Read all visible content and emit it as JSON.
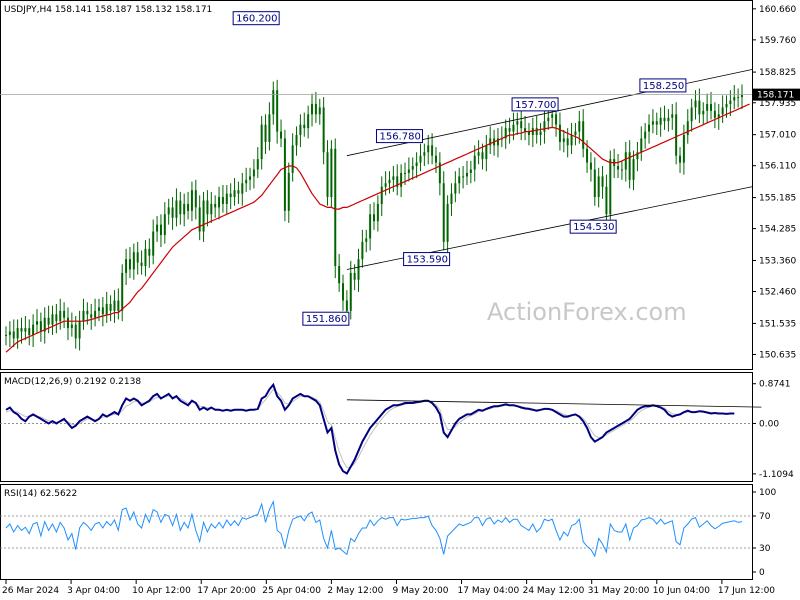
{
  "chart_data": {
    "type": "candlestick",
    "symbol_header": "USDJPY,H4  158.141 158.187 158.132 158.171",
    "watermark": "ActionForex.com",
    "current_price": 158.171,
    "current_price_label": "158.171",
    "price_axis": {
      "ylim": [
        150.3,
        160.8
      ],
      "tick_labels": [
        "160.660",
        "159.760",
        "158.825",
        "157.935",
        "157.010",
        "156.110",
        "155.185",
        "154.285",
        "153.360",
        "152.460",
        "151.535",
        "150.635"
      ]
    },
    "x_axis_labels": [
      "26 Mar 2024",
      "3 Apr 04:00",
      "10 Apr 12:00",
      "17 Apr 20:00",
      "25 Apr 04:00",
      "2 May 12:00",
      "9 May 20:00",
      "17 May 04:00",
      "24 May 12:00",
      "31 May 20:00",
      "10 Jun 04:00",
      "17 Jun 12:00"
    ],
    "price_series": {
      "name": "USDJPY",
      "close": [
        151.2,
        151.3,
        151.1,
        151.4,
        151.3,
        151.4,
        151.2,
        151.5,
        151.6,
        151.3,
        151.7,
        151.5,
        151.8,
        151.6,
        151.9,
        151.7,
        151.4,
        151.5,
        151.1,
        151.6,
        151.9,
        151.8,
        151.7,
        151.9,
        152.0,
        151.8,
        152.1,
        151.9,
        152.2,
        151.9,
        153.0,
        153.4,
        153.1,
        153.6,
        153.3,
        153.2,
        153.7,
        153.5,
        154.2,
        154.4,
        154.1,
        154.7,
        154.9,
        154.6,
        155.1,
        154.7,
        155.0,
        154.8,
        155.4,
        154.9,
        154.2,
        155.1,
        154.7,
        155.0,
        154.9,
        155.2,
        155.0,
        155.3,
        155.2,
        155.4,
        155.3,
        155.6,
        155.7,
        155.8,
        156.0,
        156.3,
        157.3,
        156.8,
        157.6,
        158.3,
        157.1,
        156.9,
        154.8,
        155.9,
        156.7,
        157.0,
        157.3,
        157.2,
        157.6,
        157.9,
        157.6,
        157.8,
        156.5,
        155.2,
        156.6,
        153.2,
        152.7,
        152.2,
        151.9,
        153.0,
        152.8,
        153.4,
        153.9,
        154.0,
        154.7,
        154.5,
        155.0,
        155.5,
        155.6,
        155.7,
        155.8,
        155.5,
        155.9,
        155.9,
        156.0,
        156.1,
        156.2,
        156.4,
        156.5,
        156.7,
        156.4,
        156.2,
        155.6,
        153.9,
        155.0,
        155.3,
        155.6,
        155.8,
        155.8,
        155.9,
        156.0,
        156.4,
        156.5,
        156.3,
        156.7,
        156.9,
        156.7,
        156.9,
        156.9,
        157.2,
        157.1,
        157.3,
        157.4,
        157.2,
        157.1,
        157.0,
        157.2,
        157.0,
        157.1,
        157.4,
        157.5,
        157.6,
        157.3,
        156.8,
        156.9,
        156.7,
        157.0,
        157.1,
        157.4,
        156.6,
        156.2,
        156.0,
        155.2,
        155.8,
        155.5,
        154.7,
        156.3,
        156.1,
        156.0,
        156.0,
        156.5,
        155.7,
        156.3,
        156.5,
        156.9,
        157.1,
        157.3,
        157.4,
        157.3,
        157.5,
        157.4,
        157.5,
        157.6,
        156.4,
        156.2,
        157.0,
        157.4,
        157.8,
        158.0,
        157.6,
        157.7,
        157.9,
        157.7,
        157.5,
        157.6,
        157.8,
        157.9,
        158.0,
        158.1,
        158.1,
        158.17
      ]
    },
    "moving_average": {
      "color": "#cc0000",
      "values": [
        150.7,
        150.8,
        150.9,
        151.0,
        151.05,
        151.1,
        151.15,
        151.2,
        151.25,
        151.3,
        151.35,
        151.4,
        151.45,
        151.5,
        151.55,
        151.6,
        151.6,
        151.6,
        151.6,
        151.6,
        151.6,
        151.62,
        151.65,
        151.68,
        151.72,
        151.75,
        151.78,
        151.8,
        151.85,
        151.85,
        151.95,
        152.05,
        152.15,
        152.3,
        152.45,
        152.55,
        152.7,
        152.85,
        153.0,
        153.15,
        153.3,
        153.45,
        153.6,
        153.75,
        153.85,
        153.95,
        154.05,
        154.15,
        154.25,
        154.3,
        154.35,
        154.4,
        154.45,
        154.5,
        154.55,
        154.6,
        154.65,
        154.7,
        154.75,
        154.8,
        154.85,
        154.9,
        154.95,
        155.0,
        155.05,
        155.15,
        155.25,
        155.4,
        155.55,
        155.7,
        155.85,
        156.0,
        156.05,
        156.1,
        156.1,
        156.05,
        155.9,
        155.7,
        155.5,
        155.3,
        155.15,
        155.0,
        154.95,
        154.9,
        154.9,
        154.85,
        154.85,
        154.9,
        154.9,
        154.95,
        155.0,
        155.05,
        155.1,
        155.15,
        155.2,
        155.25,
        155.3,
        155.35,
        155.4,
        155.45,
        155.5,
        155.55,
        155.6,
        155.65,
        155.7,
        155.75,
        155.8,
        155.85,
        155.9,
        155.95,
        156.0,
        156.05,
        156.1,
        156.15,
        156.2,
        156.25,
        156.3,
        156.35,
        156.4,
        156.45,
        156.5,
        156.55,
        156.6,
        156.65,
        156.7,
        156.75,
        156.8,
        156.85,
        156.9,
        156.95,
        157.0,
        157.0,
        157.05,
        157.05,
        157.1,
        157.1,
        157.12,
        157.14,
        157.16,
        157.18,
        157.2,
        157.22,
        157.2,
        157.15,
        157.1,
        157.05,
        157.0,
        156.95,
        156.9,
        156.8,
        156.7,
        156.6,
        156.5,
        156.4,
        156.3,
        156.25,
        156.2,
        156.2,
        156.2,
        156.25,
        156.3,
        156.35,
        156.4,
        156.45,
        156.5,
        156.55,
        156.6,
        156.65,
        156.7,
        156.75,
        156.8,
        156.85,
        156.9,
        156.95,
        157.0,
        157.05,
        157.1,
        157.15,
        157.2,
        157.25,
        157.3,
        157.35,
        157.4,
        157.45,
        157.5,
        157.55,
        157.6,
        157.65,
        157.7,
        157.75,
        157.8,
        157.85,
        157.9
      ]
    },
    "annotations": [
      {
        "label": "160.200",
        "price": 160.2,
        "index": 70
      },
      {
        "label": "151.860",
        "price": 151.86,
        "index": 88
      },
      {
        "label": "156.780",
        "price": 156.78,
        "index": 107
      },
      {
        "label": "153.590",
        "price": 153.59,
        "index": 114
      },
      {
        "label": "157.700",
        "price": 157.7,
        "index": 142
      },
      {
        "label": "154.530",
        "price": 154.53,
        "index": 157
      },
      {
        "label": "158.250",
        "price": 158.25,
        "index": 175
      }
    ],
    "channel_lines": [
      {
        "from": [
          88,
          156.4
        ],
        "to": [
          195,
          158.9
        ]
      },
      {
        "from": [
          88,
          153.1
        ],
        "to": [
          195,
          155.5
        ]
      }
    ],
    "macd": {
      "header": "MACD(12,26,9) 0.2192 0.2138",
      "tick_labels": [
        "0.8741",
        "0.00",
        "-1.1094"
      ],
      "ylim": [
        -1.2,
        1.0
      ],
      "main": [
        0.3,
        0.35,
        0.25,
        0.2,
        0.1,
        0.05,
        0.15,
        0.2,
        0.15,
        0.1,
        0.05,
        0.0,
        0.05,
        0.0,
        0.05,
        0.1,
        0.0,
        -0.1,
        -0.05,
        0.05,
        0.1,
        0.15,
        0.1,
        0.05,
        0.1,
        0.2,
        0.15,
        0.2,
        0.25,
        0.2,
        0.4,
        0.55,
        0.5,
        0.55,
        0.5,
        0.4,
        0.45,
        0.5,
        0.6,
        0.65,
        0.55,
        0.6,
        0.65,
        0.55,
        0.6,
        0.5,
        0.45,
        0.4,
        0.5,
        0.45,
        0.3,
        0.35,
        0.3,
        0.35,
        0.3,
        0.3,
        0.28,
        0.3,
        0.28,
        0.3,
        0.3,
        0.3,
        0.28,
        0.3,
        0.3,
        0.32,
        0.55,
        0.6,
        0.75,
        0.85,
        0.6,
        0.5,
        0.3,
        0.4,
        0.55,
        0.6,
        0.65,
        0.6,
        0.6,
        0.55,
        0.5,
        0.4,
        0.1,
        -0.2,
        -0.1,
        -0.6,
        -0.9,
        -1.05,
        -1.1,
        -0.95,
        -0.8,
        -0.6,
        -0.4,
        -0.25,
        -0.1,
        0.0,
        0.1,
        0.2,
        0.3,
        0.35,
        0.4,
        0.4,
        0.42,
        0.45,
        0.45,
        0.45,
        0.47,
        0.48,
        0.5,
        0.5,
        0.45,
        0.35,
        0.2,
        -0.2,
        -0.3,
        -0.15,
        0.0,
        0.1,
        0.15,
        0.2,
        0.2,
        0.25,
        0.3,
        0.28,
        0.32,
        0.35,
        0.38,
        0.38,
        0.4,
        0.42,
        0.4,
        0.4,
        0.38,
        0.35,
        0.33,
        0.32,
        0.3,
        0.28,
        0.3,
        0.32,
        0.32,
        0.3,
        0.25,
        0.2,
        0.15,
        0.15,
        0.18,
        0.2,
        0.15,
        0.05,
        -0.1,
        -0.3,
        -0.4,
        -0.35,
        -0.3,
        -0.2,
        -0.15,
        -0.1,
        -0.05,
        0.0,
        0.05,
        0.1,
        0.2,
        0.3,
        0.35,
        0.38,
        0.38,
        0.4,
        0.38,
        0.35,
        0.3,
        0.2,
        0.15,
        0.18,
        0.2,
        0.25,
        0.28,
        0.25,
        0.25,
        0.27,
        0.26,
        0.24,
        0.22,
        0.23,
        0.22,
        0.22,
        0.21,
        0.22,
        0.22
      ],
      "signal": [
        0.25,
        0.28,
        0.27,
        0.25,
        0.2,
        0.15,
        0.15,
        0.17,
        0.16,
        0.14,
        0.1,
        0.06,
        0.05,
        0.03,
        0.04,
        0.06,
        0.04,
        -0.02,
        -0.03,
        0.0,
        0.05,
        0.1,
        0.1,
        0.08,
        0.09,
        0.14,
        0.15,
        0.18,
        0.2,
        0.2,
        0.28,
        0.38,
        0.42,
        0.48,
        0.49,
        0.45,
        0.45,
        0.47,
        0.53,
        0.58,
        0.56,
        0.58,
        0.61,
        0.58,
        0.59,
        0.55,
        0.5,
        0.45,
        0.47,
        0.46,
        0.38,
        0.37,
        0.34,
        0.35,
        0.32,
        0.31,
        0.29,
        0.3,
        0.29,
        0.29,
        0.3,
        0.3,
        0.29,
        0.29,
        0.3,
        0.31,
        0.43,
        0.52,
        0.64,
        0.75,
        0.68,
        0.59,
        0.45,
        0.42,
        0.48,
        0.54,
        0.6,
        0.6,
        0.6,
        0.58,
        0.54,
        0.47,
        0.28,
        0.04,
        -0.03,
        -0.32,
        -0.61,
        -0.83,
        -0.97,
        -0.96,
        -0.88,
        -0.74,
        -0.57,
        -0.41,
        -0.26,
        -0.13,
        -0.01,
        0.1,
        0.2,
        0.28,
        0.34,
        0.37,
        0.4,
        0.42,
        0.44,
        0.44,
        0.45,
        0.46,
        0.48,
        0.49,
        0.47,
        0.41,
        0.3,
        0.05,
        -0.13,
        -0.14,
        -0.07,
        0.02,
        0.08,
        0.14,
        0.17,
        0.21,
        0.26,
        0.27,
        0.3,
        0.33,
        0.35,
        0.37,
        0.38,
        0.4,
        0.4,
        0.4,
        0.39,
        0.37,
        0.35,
        0.34,
        0.32,
        0.3,
        0.3,
        0.31,
        0.31,
        0.31,
        0.28,
        0.24,
        0.2,
        0.17,
        0.18,
        0.19,
        0.17,
        0.11,
        0.0,
        -0.15,
        -0.27,
        -0.31,
        -0.3,
        -0.25,
        -0.2,
        -0.15,
        -0.1,
        -0.05,
        0.0,
        0.05,
        0.12,
        0.21,
        0.28,
        0.33,
        0.36,
        0.38,
        0.38,
        0.37,
        0.34,
        0.27,
        0.21,
        0.2,
        0.2,
        0.23,
        0.25,
        0.25,
        0.25,
        0.26,
        0.26,
        0.25,
        0.24,
        0.23,
        0.23,
        0.22,
        0.22,
        0.22,
        0.22
      ],
      "trendline": {
        "from": [
          88,
          0.52
        ],
        "to": [
          195,
          0.36
        ]
      }
    },
    "rsi": {
      "header": "RSI(14) 62.5622",
      "tick_labels": [
        "100",
        "70",
        "30",
        "0"
      ],
      "ylim": [
        0,
        100
      ],
      "levels": [
        70,
        30
      ],
      "values": [
        55,
        60,
        50,
        58,
        52,
        56,
        48,
        60,
        62,
        45,
        63,
        52,
        60,
        50,
        62,
        55,
        40,
        48,
        28,
        55,
        62,
        58,
        52,
        60,
        62,
        55,
        63,
        58,
        65,
        52,
        78,
        80,
        65,
        75,
        60,
        55,
        72,
        62,
        78,
        75,
        62,
        72,
        70,
        58,
        72,
        52,
        62,
        55,
        72,
        52,
        38,
        62,
        50,
        60,
        55,
        62,
        55,
        65,
        58,
        64,
        58,
        68,
        66,
        68,
        70,
        72,
        85,
        62,
        78,
        88,
        52,
        48,
        30,
        52,
        66,
        68,
        70,
        64,
        72,
        75,
        62,
        65,
        42,
        30,
        52,
        28,
        30,
        26,
        22,
        42,
        38,
        48,
        55,
        55,
        65,
        58,
        64,
        68,
        66,
        68,
        68,
        58,
        66,
        65,
        66,
        67,
        67,
        68,
        68,
        70,
        58,
        52,
        42,
        22,
        45,
        50,
        55,
        60,
        58,
        60,
        62,
        68,
        68,
        58,
        66,
        68,
        60,
        65,
        62,
        68,
        62,
        66,
        66,
        58,
        55,
        52,
        60,
        50,
        55,
        66,
        64,
        66,
        52,
        40,
        50,
        45,
        58,
        60,
        66,
        38,
        32,
        28,
        20,
        42,
        35,
        25,
        60,
        52,
        50,
        50,
        60,
        40,
        55,
        58,
        65,
        66,
        68,
        66,
        60,
        66,
        60,
        62,
        64,
        38,
        34,
        55,
        60,
        66,
        68,
        56,
        60,
        64,
        58,
        54,
        57,
        61,
        62,
        63,
        64,
        62,
        63
      ]
    }
  }
}
